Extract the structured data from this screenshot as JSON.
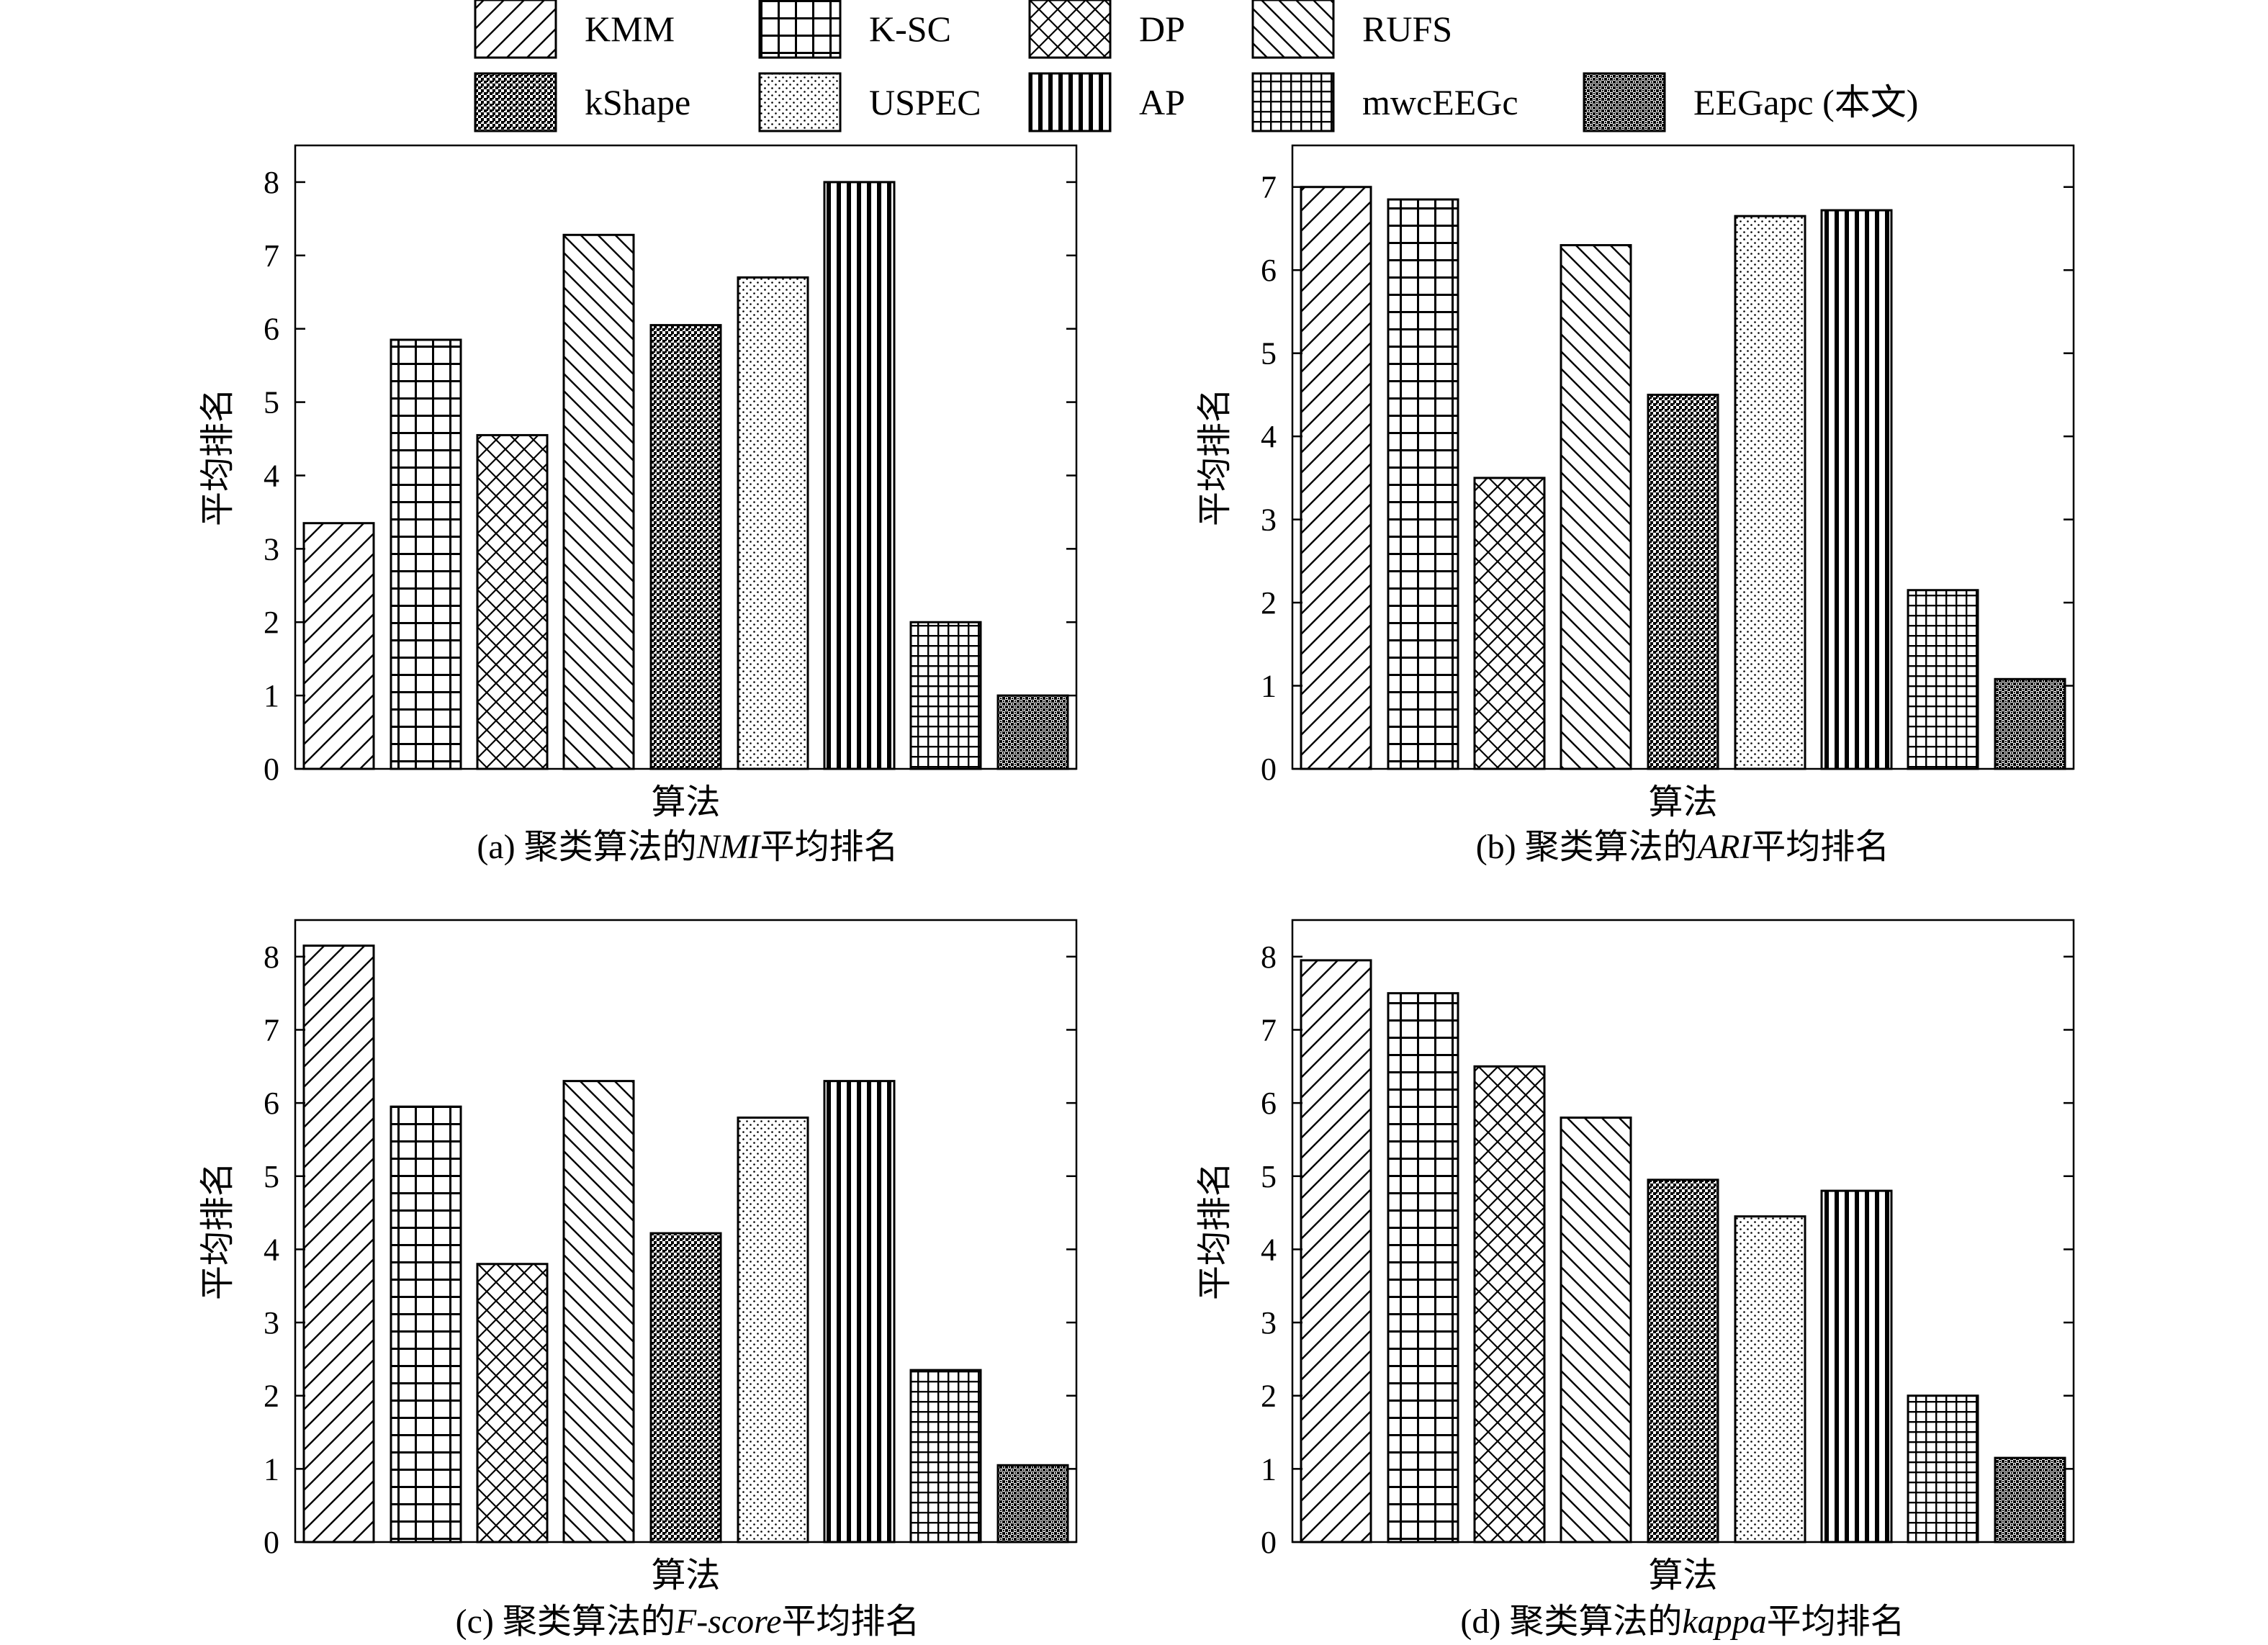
{
  "legend": {
    "items": [
      {
        "label": "KMM",
        "pattern": "diag-right"
      },
      {
        "label": "K-SC",
        "pattern": "grid-large"
      },
      {
        "label": "DP",
        "pattern": "crosshatch"
      },
      {
        "label": "RUFS",
        "pattern": "diag-left"
      },
      {
        "label": "kShape",
        "pattern": "dense-dots"
      },
      {
        "label": "USPEC",
        "pattern": "light-dots"
      },
      {
        "label": "AP",
        "pattern": "vertical-lines"
      },
      {
        "label": "mwcEEGc",
        "pattern": "grid-small"
      },
      {
        "label": "EEGapc (本文)",
        "pattern": "checker"
      }
    ]
  },
  "chart_data": [
    {
      "type": "bar",
      "categories": [
        "KMM",
        "K-SC",
        "DP",
        "RUFS",
        "kShape",
        "USPEC",
        "AP",
        "mwcEEGc",
        "EEGapc (本文)"
      ],
      "values": [
        3.35,
        5.85,
        4.55,
        7.28,
        6.05,
        6.7,
        8.0,
        2.0,
        1.0
      ],
      "xlabel": "算法",
      "ylabel": "平均排名",
      "ylim": [
        0,
        8.5
      ],
      "yticks": [
        0,
        1,
        2,
        3,
        4,
        5,
        6,
        7,
        8
      ],
      "caption_prefix": "(a)  聚类算法的",
      "caption_metric": "NMI",
      "caption_suffix": "平均排名"
    },
    {
      "type": "bar",
      "categories": [
        "KMM",
        "K-SC",
        "DP",
        "RUFS",
        "kShape",
        "USPEC",
        "AP",
        "mwcEEGc",
        "EEGapc (本文)"
      ],
      "values": [
        7.0,
        6.85,
        3.5,
        6.3,
        4.5,
        6.65,
        6.72,
        2.15,
        1.08
      ],
      "xlabel": "算法",
      "ylabel": "平均排名",
      "ylim": [
        0,
        7.5
      ],
      "yticks": [
        0,
        1,
        2,
        3,
        4,
        5,
        6,
        7
      ],
      "caption_prefix": "(b)  聚类算法的",
      "caption_metric": "ARI",
      "caption_suffix": "平均排名"
    },
    {
      "type": "bar",
      "categories": [
        "KMM",
        "K-SC",
        "DP",
        "RUFS",
        "kShape",
        "USPEC",
        "AP",
        "mwcEEGc",
        "EEGapc (本文)"
      ],
      "values": [
        8.15,
        5.95,
        3.8,
        6.3,
        4.22,
        5.8,
        6.3,
        2.35,
        1.05
      ],
      "xlabel": "算法",
      "ylabel": "平均排名",
      "ylim": [
        0,
        8.5
      ],
      "yticks": [
        0,
        1,
        2,
        3,
        4,
        5,
        6,
        7,
        8
      ],
      "caption_prefix": "(c)  聚类算法的",
      "caption_metric": "F-score",
      "caption_suffix": "平均排名"
    },
    {
      "type": "bar",
      "categories": [
        "KMM",
        "K-SC",
        "DP",
        "RUFS",
        "kShape",
        "USPEC",
        "AP",
        "mwcEEGc",
        "EEGapc (本文)"
      ],
      "values": [
        7.95,
        7.5,
        6.5,
        5.8,
        4.95,
        4.45,
        4.8,
        2.0,
        1.15
      ],
      "xlabel": "算法",
      "ylabel": "平均排名",
      "ylim": [
        0,
        8.5
      ],
      "yticks": [
        0,
        1,
        2,
        3,
        4,
        5,
        6,
        7,
        8
      ],
      "caption_prefix": "(d)  聚类算法的",
      "caption_metric": "kappa",
      "caption_suffix": "平均排名"
    }
  ]
}
